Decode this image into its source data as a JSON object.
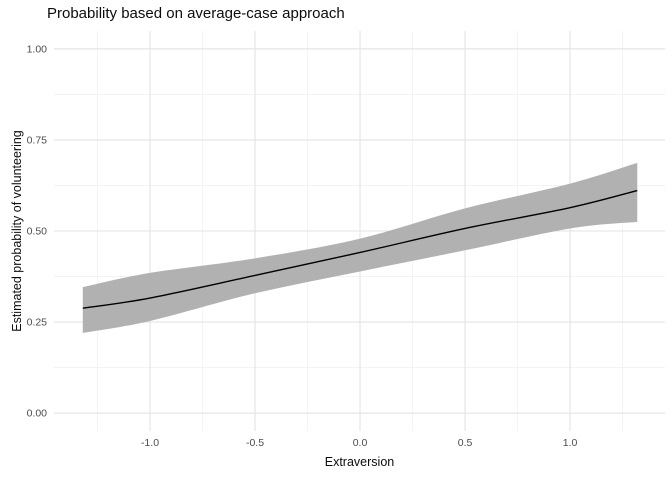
{
  "window": {
    "kind": "static-plot",
    "background": "#ffffff"
  },
  "chart_data": {
    "type": "line",
    "title": "Probability based on average-case approach",
    "xlabel": "Extraversion",
    "ylabel": "Estimated probability of volunteering",
    "x": [
      -1.32,
      -1.0,
      -0.5,
      0.0,
      0.5,
      1.0,
      1.32
    ],
    "series": [
      {
        "name": "fit",
        "values": [
          0.288,
          0.316,
          0.378,
          0.441,
          0.507,
          0.564,
          0.611
        ]
      },
      {
        "name": "ci_lower",
        "values": [
          0.22,
          0.253,
          0.329,
          0.389,
          0.447,
          0.507,
          0.525
        ]
      },
      {
        "name": "ci_upper",
        "values": [
          0.346,
          0.385,
          0.425,
          0.479,
          0.562,
          0.63,
          0.687
        ]
      }
    ],
    "xlim": [
      -1.457,
      1.452
    ],
    "ylim": [
      -0.049,
      1.049
    ],
    "x_ticks": {
      "major": [
        -1.0,
        -0.5,
        0.0,
        0.5,
        1.0
      ],
      "major_labels": [
        "-1.0",
        "-0.5",
        "0.0",
        "0.5",
        "1.0"
      ],
      "minor": [
        -1.25,
        -0.75,
        -0.25,
        0.25,
        0.75,
        1.25
      ]
    },
    "y_ticks": {
      "major": [
        0.0,
        0.25,
        0.5,
        0.75,
        1.0
      ],
      "major_labels": [
        "0.00",
        "0.25",
        "0.50",
        "0.75",
        "1.00"
      ],
      "minor": [
        0.125,
        0.375,
        0.625,
        0.875
      ]
    },
    "grid": "major+minor",
    "legend": "none",
    "style": {
      "ribbon_color": "#b1b1b1",
      "line_color": "#000000",
      "grid_major_color": "#e3e3e3",
      "grid_minor_color": "#efefef",
      "tick_label_color": "#4d4d4d",
      "title_color": "#0d0d0d",
      "axis_title_color": "#0d0d0d",
      "background": "#ffffff"
    }
  }
}
